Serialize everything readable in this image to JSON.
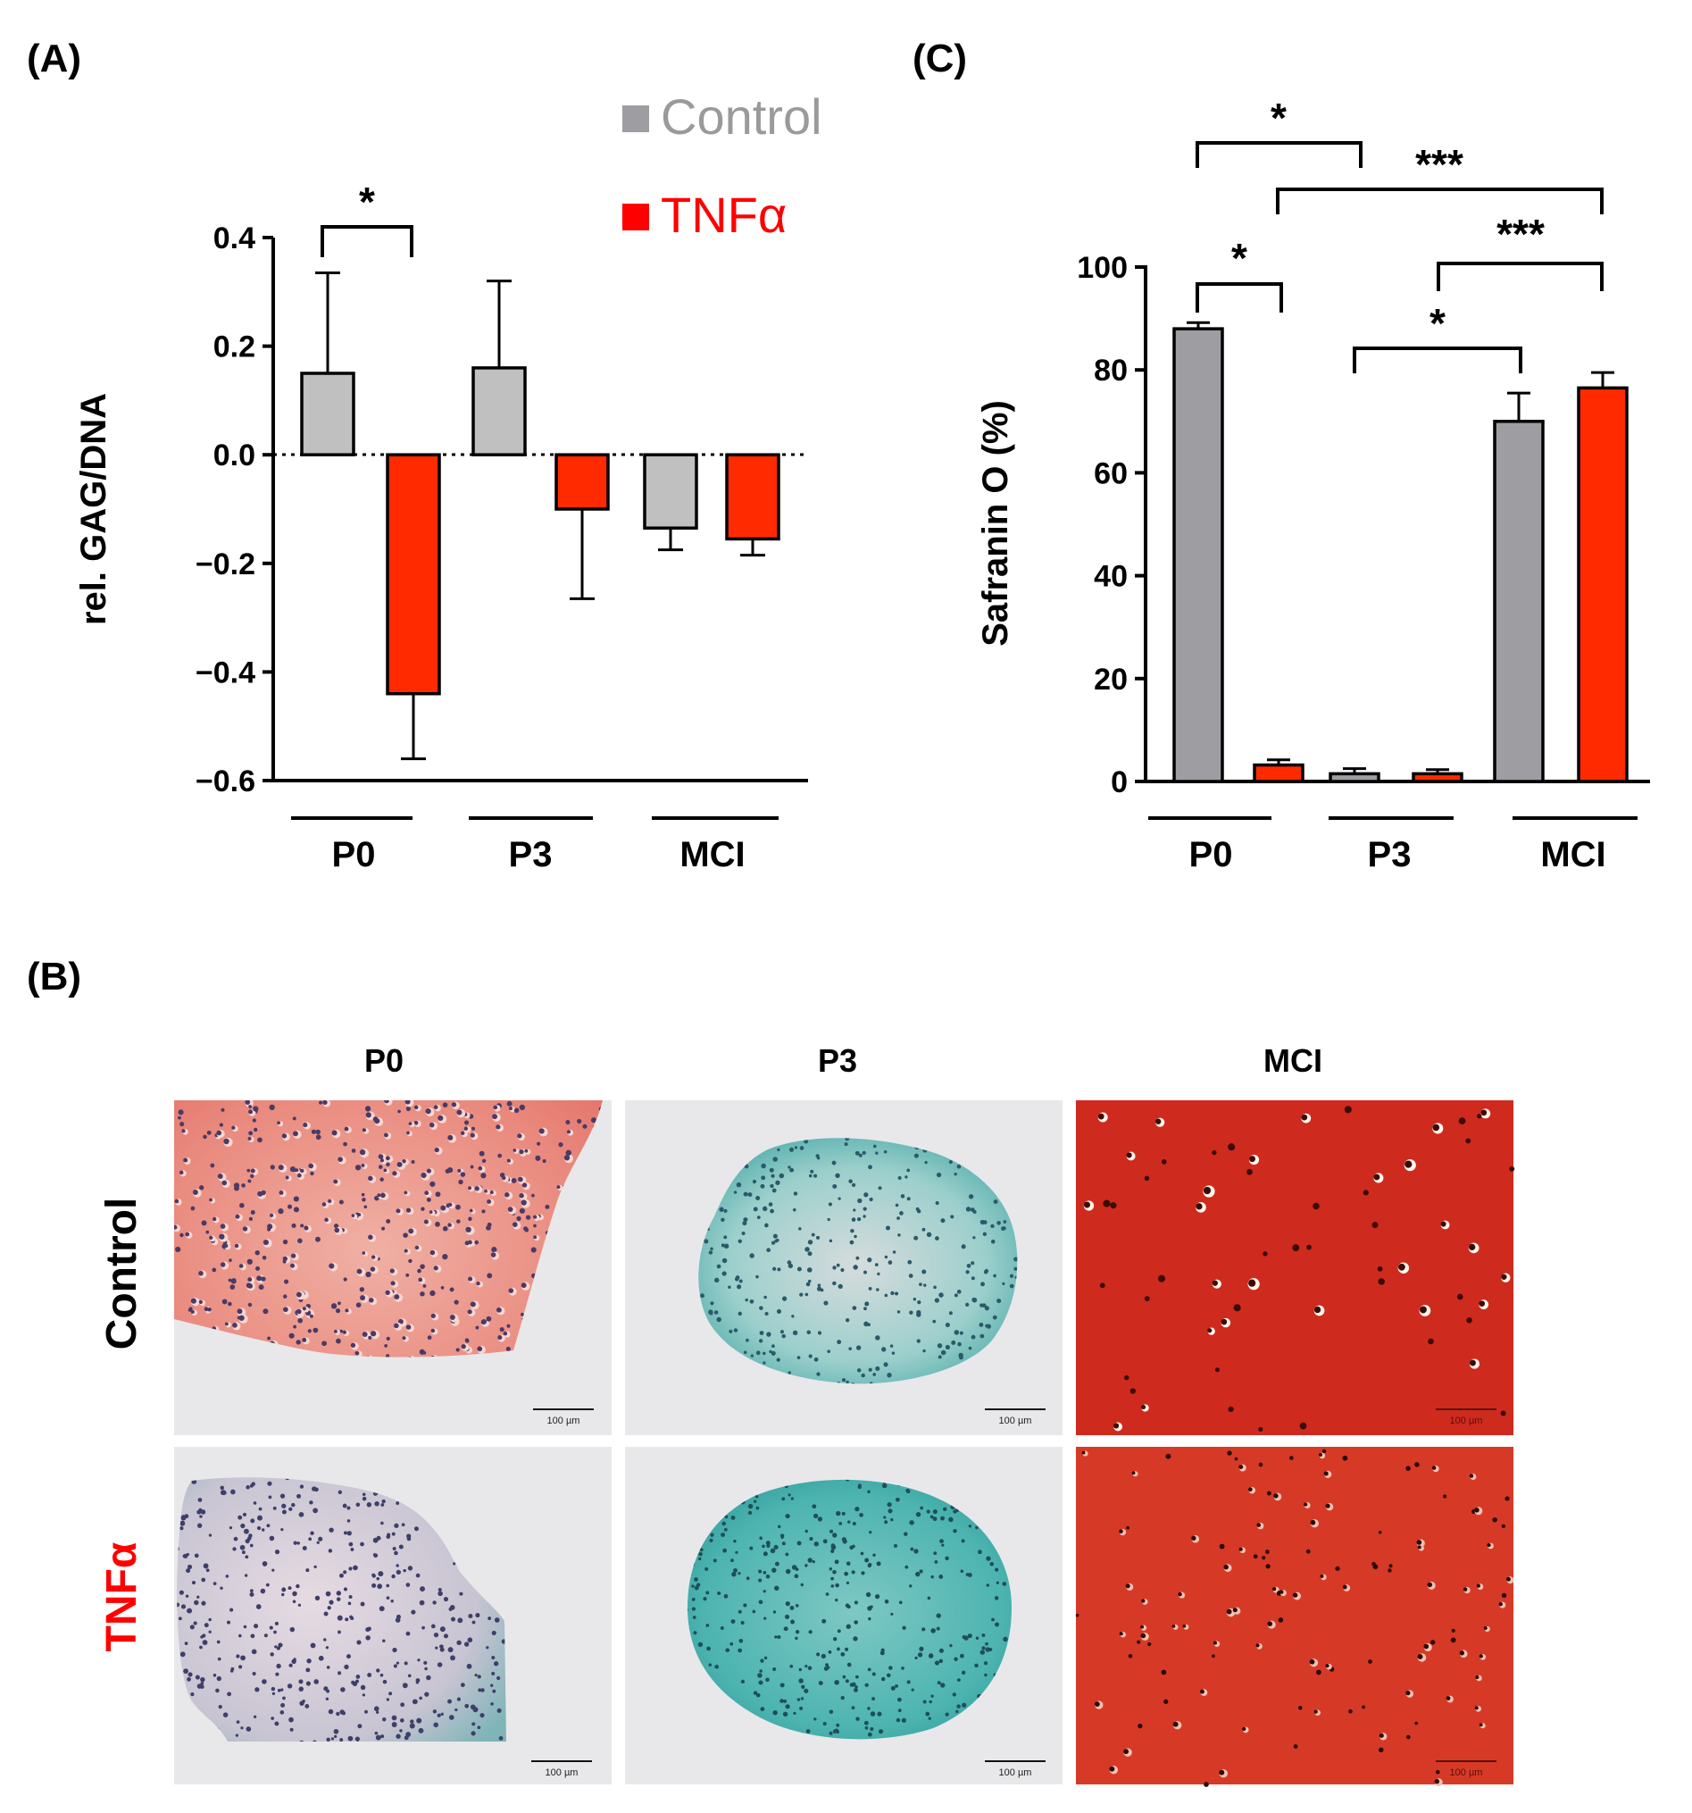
{
  "panels": {
    "a": "(A)",
    "b": "(B)",
    "c": "(C)"
  },
  "colors": {
    "control": "#c0c0c0",
    "control_dark": "#9e9ea2",
    "tnf": "#ff2a00",
    "tnf_text": "#ff0000",
    "axis": "#000000",
    "legend_control_text": "#9a9a9a"
  },
  "legend": {
    "control": "Control",
    "tnf": "TNFα"
  },
  "chart_data": [
    {
      "id": "A",
      "type": "bar",
      "ylabel": "rel. GAG/DNA",
      "ylim": [
        -0.6,
        0.4
      ],
      "yticks": [
        0.4,
        0.2,
        0.0,
        -0.2,
        -0.4,
        -0.6
      ],
      "ytick_labels": [
        "0.4",
        "0.2",
        "0.0",
        "−0.2",
        "−0.4",
        "−0.6"
      ],
      "categories": [
        "P0",
        "P3",
        "MCI"
      ],
      "zero_line": "dotted",
      "series": [
        {
          "name": "Control",
          "values": [
            0.15,
            0.16,
            -0.135
          ],
          "errors": [
            0.185,
            0.16,
            0.04
          ]
        },
        {
          "name": "TNFα",
          "values": [
            -0.44,
            -0.1,
            -0.155
          ],
          "errors": [
            0.12,
            0.165,
            0.03
          ]
        }
      ],
      "significance": [
        {
          "from": "P0 Control",
          "to": "P0 TNFα",
          "label": "*"
        }
      ]
    },
    {
      "id": "C",
      "type": "bar",
      "ylabel": "Safranin O (%)",
      "ylim": [
        0,
        100
      ],
      "yticks": [
        0,
        20,
        40,
        60,
        80,
        100
      ],
      "ytick_labels": [
        "0",
        "20",
        "40",
        "60",
        "80",
        "100"
      ],
      "categories": [
        "P0",
        "P3",
        "MCI"
      ],
      "series": [
        {
          "name": "Control",
          "values": [
            88,
            1.5,
            70
          ],
          "errors": [
            1.2,
            1.0,
            5.5
          ]
        },
        {
          "name": "TNFα",
          "values": [
            3.2,
            1.5,
            76.5
          ],
          "errors": [
            1.0,
            0.8,
            3.0
          ]
        }
      ],
      "significance": [
        {
          "from": "P0 Control",
          "to": "P0 TNFα",
          "label": "*"
        },
        {
          "from": "P0 Control",
          "to": "P3",
          "label": "*"
        },
        {
          "from": "P0 TNFα",
          "to": "MCI TNFα",
          "label": "***"
        },
        {
          "from": "P3 TNFα",
          "to": "MCI TNFα",
          "label": "***"
        },
        {
          "from": "P3",
          "to": "MCI Control",
          "label": "*"
        }
      ]
    }
  ],
  "micrographs": {
    "columns": [
      "P0",
      "P3",
      "MCI"
    ],
    "rows": [
      "Control",
      "TNFα"
    ],
    "scale_bar": "100 µm"
  }
}
